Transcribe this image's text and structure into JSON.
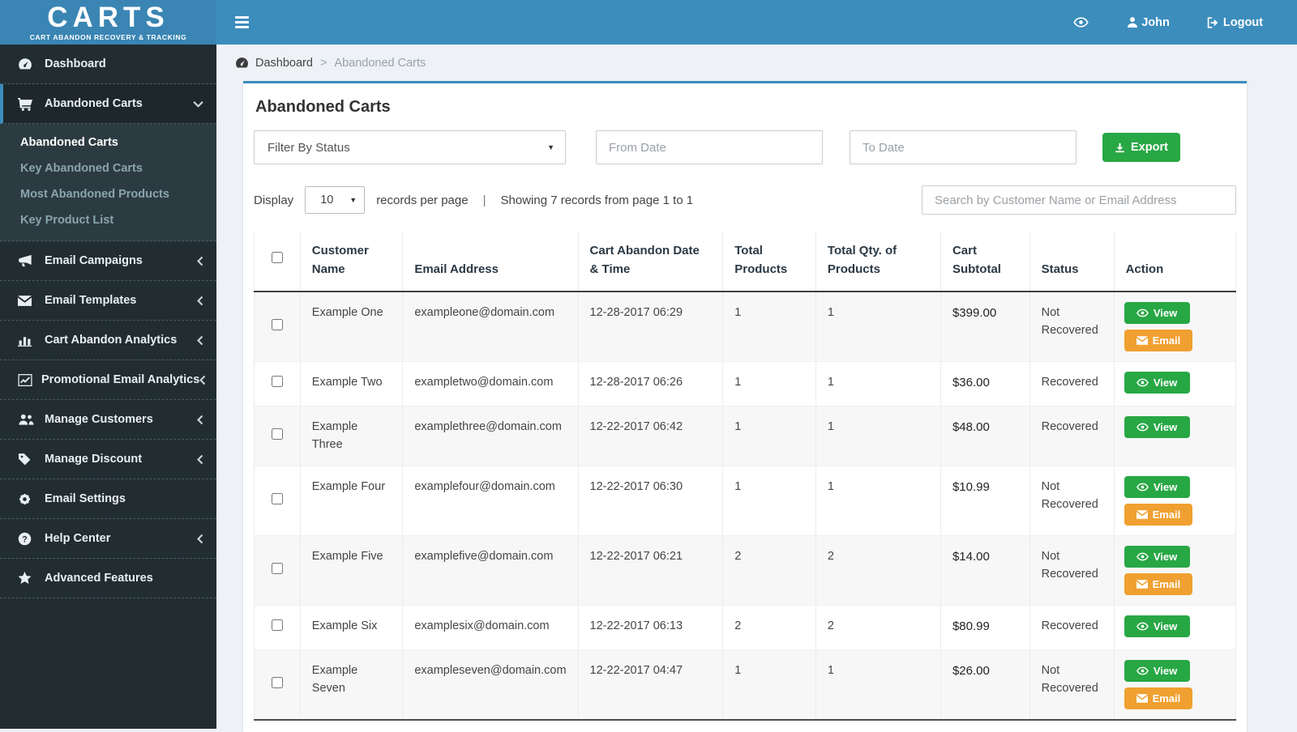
{
  "app": {
    "name": "CARTS",
    "tagline": "CART ABANDON RECOVERY & TRACKING"
  },
  "topbar": {
    "user_name": "John",
    "logout_label": "Logout"
  },
  "sidebar": {
    "items": [
      {
        "label": "Dashboard",
        "icon": "dashboard-icon",
        "chevron": "none",
        "active": false
      },
      {
        "label": "Abandoned Carts",
        "icon": "cart-icon",
        "chevron": "down",
        "active": true,
        "children": [
          {
            "label": "Abandoned Carts",
            "active": true
          },
          {
            "label": "Key Abandoned Carts",
            "active": false
          },
          {
            "label": "Most Abandoned Products",
            "active": false
          },
          {
            "label": "Key Product List",
            "active": false
          }
        ]
      },
      {
        "label": "Email Campaigns",
        "icon": "megaphone-icon",
        "chevron": "left",
        "active": false
      },
      {
        "label": "Email Templates",
        "icon": "envelope-icon",
        "chevron": "left",
        "active": false
      },
      {
        "label": "Cart Abandon Analytics",
        "icon": "bar-chart-icon",
        "chevron": "left",
        "active": false
      },
      {
        "label": "Promotional Email Analytics",
        "icon": "line-chart-icon",
        "chevron": "left",
        "active": false
      },
      {
        "label": "Manage Customers",
        "icon": "users-icon",
        "chevron": "left",
        "active": false
      },
      {
        "label": "Manage Discount",
        "icon": "tag-icon",
        "chevron": "left",
        "active": false
      },
      {
        "label": "Email Settings",
        "icon": "gear-icon",
        "chevron": "none",
        "active": false
      },
      {
        "label": "Help Center",
        "icon": "question-icon",
        "chevron": "left",
        "active": false
      },
      {
        "label": "Advanced Features",
        "icon": "star-icon",
        "chevron": "none",
        "active": false
      }
    ]
  },
  "breadcrumb": {
    "home": "Dashboard",
    "separator": ">",
    "current": "Abandoned Carts"
  },
  "page": {
    "title": "Abandoned Carts",
    "filters": {
      "status_placeholder": "Filter By Status",
      "from_date_placeholder": "From Date",
      "to_date_placeholder": "To Date",
      "export_label": "Export"
    },
    "toolbar": {
      "display_label": "Display",
      "per_page": "10",
      "records_per_page_label": "records per page",
      "divider": "|",
      "showing_text": "Showing 7 records from page 1 to 1",
      "search_placeholder": "Search by Customer Name or Email Address"
    },
    "table": {
      "headers": [
        "Customer Name",
        "Email Address",
        "Cart Abandon Date & Time",
        "Total Products",
        "Total Qty. of Products",
        "Cart Subtotal",
        "Status",
        "Action"
      ],
      "action_labels": {
        "view": "View",
        "email": "Email"
      },
      "rows": [
        {
          "customer": "Example One",
          "email": "exampleone@domain.com",
          "datetime": "12-28-2017 06:29",
          "total_products": "1",
          "total_qty": "1",
          "subtotal": "$399.00",
          "status": "Not Recovered",
          "actions": [
            "view",
            "email"
          ]
        },
        {
          "customer": "Example Two",
          "email": "exampletwo@domain.com",
          "datetime": "12-28-2017 06:26",
          "total_products": "1",
          "total_qty": "1",
          "subtotal": "$36.00",
          "status": "Recovered",
          "actions": [
            "view"
          ]
        },
        {
          "customer": "Example Three",
          "email": "examplethree@domain.com",
          "datetime": "12-22-2017 06:42",
          "total_products": "1",
          "total_qty": "1",
          "subtotal": "$48.00",
          "status": "Recovered",
          "actions": [
            "view"
          ]
        },
        {
          "customer": "Example Four",
          "email": "examplefour@domain.com",
          "datetime": "12-22-2017 06:30",
          "total_products": "1",
          "total_qty": "1",
          "subtotal": "$10.99",
          "status": "Not Recovered",
          "actions": [
            "view",
            "email"
          ]
        },
        {
          "customer": "Example Five",
          "email": "examplefive@domain.com",
          "datetime": "12-22-2017 06:21",
          "total_products": "2",
          "total_qty": "2",
          "subtotal": "$14.00",
          "status": "Not Recovered",
          "actions": [
            "view",
            "email"
          ]
        },
        {
          "customer": "Example Six",
          "email": "examplesix@domain.com",
          "datetime": "12-22-2017 06:13",
          "total_products": "2",
          "total_qty": "2",
          "subtotal": "$80.99",
          "status": "Recovered",
          "actions": [
            "view"
          ]
        },
        {
          "customer": "Example Seven",
          "email": "exampleseven@domain.com",
          "datetime": "12-22-2017 04:47",
          "total_products": "1",
          "total_qty": "1",
          "subtotal": "$26.00",
          "status": "Not Recovered",
          "actions": [
            "view",
            "email"
          ]
        }
      ]
    }
  },
  "colors": {
    "accent_blue": "#3c8dbc",
    "sidebar_bg": "#222d32",
    "success_green": "#28a745",
    "warning_orange": "#f0a030"
  }
}
